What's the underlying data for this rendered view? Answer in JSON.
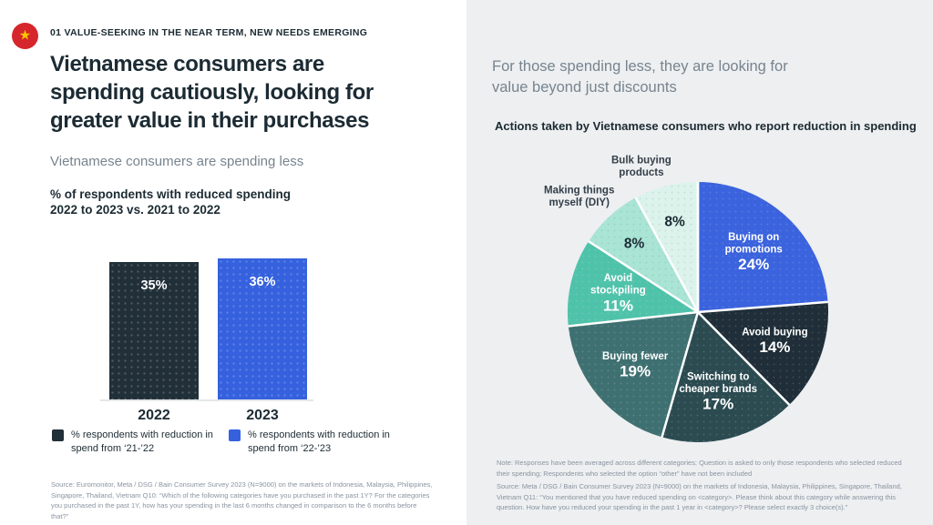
{
  "slide": {
    "left": {
      "flag_icon": "vietnam-flag",
      "kicker": "01 VALUE-SEEKING IN THE NEAR TERM, NEW NEEDS EMERGING",
      "title": "Vietnamese consumers are\nspending cautiously, looking for\ngreater value in their purchases",
      "subtitle": "Vietnamese consumers are spending less",
      "source": "Source: Euromonitor, Meta / DSG / Bain Consumer Survey 2023 (N=9000) on the markets of Indonesia, Malaysia, Philippines, Singapore, Thailand, Vietnam Q10: “Which of the following categories have you purchased in the past 1Y? For the categories you purchased in the past 1Y, how has your spending in the last 6 months changed in comparison to the 6 months before that?”"
    },
    "right": {
      "heading": "For those spending less, they are looking for\nvalue beyond just discounts",
      "note": "Note: Responses have been averaged across different categories; Question is asked to only those respondents who selected reduced their spending; Respondents who selected the option “other” have not been included",
      "source": "Source: Meta / DSG / Bain Consumer Survey 2023 (N=9000) on the markets of Indonesia, Malaysia, Philippines, Singapore, Thailand, Vietnam Q11: “You mentioned that you have reduced spending on <category>. Please think about this category while answering this question. How have you reduced your spending in the past 1 year in <category>? Please select exactly 3 choice(s).”"
    }
  },
  "colors": {
    "left_bg": "#FFFFFF",
    "right_bg": "#EDEFF1",
    "dark_text": "#1C2B33",
    "gray_text": "#77848F",
    "source_text": "#8994A0",
    "axis_line": "#E4E7E9",
    "flag_red": "#D5262C",
    "flag_star": "#F7C600",
    "accent_blue": "#3561DE"
  },
  "chart_data": [
    {
      "type": "bar",
      "title": "% of respondents with reduced spending\n2022 to 2023 vs. 2021 to 2022",
      "categories": [
        "2022",
        "2023"
      ],
      "values": [
        35,
        36
      ],
      "value_suffix": "%",
      "bar_colors": [
        "#212F39",
        "#3561DE"
      ],
      "legend": [
        {
          "label": "% respondents with reduction in\nspend from ‘21-’22",
          "color": "#212F39"
        },
        {
          "label": "% respondents with reduction in\nspend from ‘22-’23",
          "color": "#3561DE"
        }
      ],
      "grid": false,
      "legend_position": "bottom"
    },
    {
      "type": "pie",
      "title": "Actions taken by Vietnamese consumers who report reduction in spending",
      "start_angle": "12 o'clock, clockwise",
      "slices": [
        {
          "label": "Buying on promotions",
          "label_lines": [
            "Buying on",
            "promotions"
          ],
          "value": 24,
          "color": "#3B63DD",
          "label_color": "#FFFFFF",
          "label_position": "inside"
        },
        {
          "label": "Avoid buying",
          "label_lines": [
            "Avoid buying"
          ],
          "value": 14,
          "color": "#1F2E38",
          "label_color": "#FFFFFF",
          "label_position": "inside"
        },
        {
          "label": "Switching to cheaper brands",
          "label_lines": [
            "Switching to",
            "cheaper brands"
          ],
          "value": 17,
          "color": "#2B4B51",
          "label_color": "#FFFFFF",
          "label_position": "inside"
        },
        {
          "label": "Buying fewer",
          "label_lines": [
            "Buying fewer"
          ],
          "value": 19,
          "color": "#3F7071",
          "label_color": "#FFFFFF",
          "label_position": "inside"
        },
        {
          "label": "Avoid stockpiling",
          "label_lines": [
            "Avoid",
            "stockpiling"
          ],
          "value": 11,
          "color": "#4FC2AA",
          "label_color": "#FFFFFF",
          "label_position": "inside"
        },
        {
          "label": "Making things myself (DIY)",
          "label_lines": [
            "Making things",
            "myself (DIY)"
          ],
          "value": 8,
          "color": "#A9E4D5",
          "label_color": "#1C2B33",
          "label_position": "outside"
        },
        {
          "label": "Bulk buying products",
          "label_lines": [
            "Bulk buying",
            "products"
          ],
          "value": 8,
          "color": "#DCF3EC",
          "label_color": "#1C2B33",
          "label_position": "outside"
        }
      ]
    }
  ]
}
